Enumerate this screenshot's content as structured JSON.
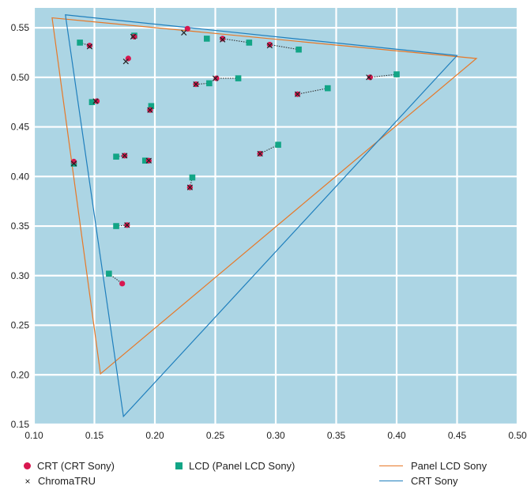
{
  "chart_data": {
    "type": "scatter",
    "xlim": [
      0.1,
      0.5
    ],
    "ylim": [
      0.15,
      0.57
    ],
    "x_ticks": [
      "0.10",
      "0.15",
      "0.20",
      "0.25",
      "0.30",
      "0.35",
      "0.40",
      "0.45",
      "0.50"
    ],
    "y_ticks": [
      "0.15",
      "0.20",
      "0.25",
      "0.30",
      "0.35",
      "0.40",
      "0.45",
      "0.50",
      "0.55"
    ],
    "grid": true,
    "background_color": "#acd5e4",
    "grid_color": "#ffffff",
    "colors": {
      "crt": "#d8174f",
      "lcd": "#12a586",
      "chromatru": "#222222",
      "panel_tri": "#e77828",
      "crt_tri": "#1f7fbd",
      "connector": "#333333"
    },
    "series": [
      {
        "name": "CRT (CRT Sony)",
        "marker": "circle",
        "points": [
          [
            0.227,
            0.549
          ],
          [
            0.146,
            0.532
          ],
          [
            0.183,
            0.541
          ],
          [
            0.178,
            0.519
          ],
          [
            0.256,
            0.539
          ],
          [
            0.295,
            0.533
          ],
          [
            0.152,
            0.476
          ],
          [
            0.196,
            0.467
          ],
          [
            0.234,
            0.493
          ],
          [
            0.251,
            0.499
          ],
          [
            0.318,
            0.483
          ],
          [
            0.378,
            0.5
          ],
          [
            0.133,
            0.415
          ],
          [
            0.175,
            0.421
          ],
          [
            0.195,
            0.416
          ],
          [
            0.287,
            0.423
          ],
          [
            0.229,
            0.389
          ],
          [
            0.177,
            0.351
          ],
          [
            0.173,
            0.292
          ]
        ]
      },
      {
        "name": "LCD (Panel LCD Sony)",
        "marker": "square",
        "points": [
          [
            0.138,
            0.535
          ],
          [
            0.183,
            0.542
          ],
          [
            0.243,
            0.539
          ],
          [
            0.278,
            0.535
          ],
          [
            0.319,
            0.528
          ],
          [
            0.148,
            0.475
          ],
          [
            0.197,
            0.471
          ],
          [
            0.245,
            0.494
          ],
          [
            0.269,
            0.499
          ],
          [
            0.343,
            0.489
          ],
          [
            0.4,
            0.503
          ],
          [
            0.168,
            0.42
          ],
          [
            0.192,
            0.416
          ],
          [
            0.302,
            0.432
          ],
          [
            0.231,
            0.399
          ],
          [
            0.168,
            0.35
          ],
          [
            0.162,
            0.302
          ],
          [
            0.133,
            0.413
          ]
        ]
      },
      {
        "name": "ChromaTRU",
        "marker": "x",
        "points": [
          [
            0.224,
            0.545
          ],
          [
            0.146,
            0.531
          ],
          [
            0.182,
            0.541
          ],
          [
            0.176,
            0.516
          ],
          [
            0.256,
            0.538
          ],
          [
            0.295,
            0.532
          ],
          [
            0.151,
            0.476
          ],
          [
            0.196,
            0.467
          ],
          [
            0.234,
            0.493
          ],
          [
            0.25,
            0.499
          ],
          [
            0.318,
            0.483
          ],
          [
            0.377,
            0.5
          ],
          [
            0.133,
            0.413
          ],
          [
            0.175,
            0.421
          ],
          [
            0.195,
            0.416
          ],
          [
            0.287,
            0.423
          ],
          [
            0.229,
            0.389
          ],
          [
            0.177,
            0.351
          ]
        ]
      }
    ],
    "connectors": [
      [
        [
          0.138,
          0.535
        ],
        [
          0.146,
          0.532
        ]
      ],
      [
        [
          0.278,
          0.535
        ],
        [
          0.256,
          0.539
        ]
      ],
      [
        [
          0.319,
          0.528
        ],
        [
          0.295,
          0.533
        ]
      ],
      [
        [
          0.148,
          0.475
        ],
        [
          0.152,
          0.476
        ]
      ],
      [
        [
          0.197,
          0.471
        ],
        [
          0.196,
          0.467
        ]
      ],
      [
        [
          0.245,
          0.494
        ],
        [
          0.234,
          0.493
        ]
      ],
      [
        [
          0.269,
          0.499
        ],
        [
          0.251,
          0.499
        ]
      ],
      [
        [
          0.343,
          0.489
        ],
        [
          0.318,
          0.483
        ]
      ],
      [
        [
          0.4,
          0.503
        ],
        [
          0.378,
          0.5
        ]
      ],
      [
        [
          0.168,
          0.42
        ],
        [
          0.175,
          0.421
        ]
      ],
      [
        [
          0.192,
          0.416
        ],
        [
          0.195,
          0.416
        ]
      ],
      [
        [
          0.302,
          0.432
        ],
        [
          0.287,
          0.423
        ]
      ],
      [
        [
          0.231,
          0.399
        ],
        [
          0.229,
          0.389
        ]
      ],
      [
        [
          0.168,
          0.35
        ],
        [
          0.177,
          0.351
        ]
      ],
      [
        [
          0.162,
          0.302
        ],
        [
          0.173,
          0.292
        ]
      ]
    ],
    "gamut_triangles": [
      {
        "name": "Panel LCD Sony",
        "points": [
          [
            0.115,
            0.56
          ],
          [
            0.466,
            0.519
          ],
          [
            0.155,
            0.201
          ]
        ]
      },
      {
        "name": "CRT Sony",
        "points": [
          [
            0.126,
            0.563
          ],
          [
            0.45,
            0.522
          ],
          [
            0.174,
            0.158
          ]
        ]
      }
    ]
  },
  "legend": {
    "crt_label": "CRT (CRT Sony)",
    "lcd_label": "LCD (Panel LCD Sony)",
    "chromatru_label": "ChromaTRU",
    "chromatru_symbol": "×",
    "panel_label": "Panel LCD Sony",
    "crt_sony_label": "CRT Sony"
  }
}
